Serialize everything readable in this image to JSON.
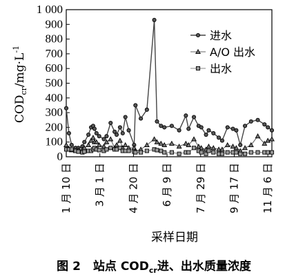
{
  "chart_data": {
    "type": "line",
    "xlabel": "采样日期",
    "ylabel": "COD",
    "ylabel_sub": "cr",
    "ylabel_unit": "/mg·L",
    "ylabel_sup": "-1",
    "ylim": [
      0,
      1000
    ],
    "yticks": [
      0,
      100,
      200,
      300,
      400,
      500,
      600,
      700,
      800,
      900,
      1000
    ],
    "ytick_labels": [
      "0",
      "100",
      "200",
      "300",
      "400",
      "500",
      "600",
      "700",
      "800",
      "900",
      "1 000"
    ],
    "xtick_labels": [
      "1 月 10 日",
      "3 月 1 日",
      "4 月 20 日",
      "6 月 9 日",
      "7 月 29 日",
      "9 月 17 日",
      "11 月 6 日"
    ],
    "xtick_positions": [
      0,
      50,
      100,
      150,
      200,
      250,
      300
    ],
    "x": [
      0,
      4,
      8,
      14,
      18,
      24,
      27,
      33,
      37,
      40,
      42,
      45,
      49,
      56,
      60,
      66,
      72,
      75,
      80,
      84,
      88,
      93,
      101,
      103,
      111,
      120,
      131,
      135,
      141,
      146,
      157,
      168,
      178,
      182,
      190,
      197,
      201,
      208,
      212,
      219,
      227,
      232,
      240,
      248,
      253,
      259,
      266,
      275,
      285,
      295,
      300,
      306
    ],
    "series": [
      {
        "name": "进水",
        "marker": "circle",
        "values": [
          330,
          160,
          80,
          60,
          60,
          70,
          100,
          150,
          200,
          210,
          190,
          160,
          140,
          120,
          140,
          230,
          170,
          150,
          200,
          160,
          270,
          180,
          80,
          350,
          260,
          320,
          930,
          240,
          210,
          200,
          210,
          180,
          280,
          190,
          270,
          210,
          200,
          150,
          180,
          160,
          130,
          110,
          200,
          190,
          180,
          80,
          210,
          240,
          250,
          220,
          200,
          180
        ]
      },
      {
        "name": "A/O 出水",
        "marker": "triangle",
        "values": [
          80,
          55,
          45,
          40,
          45,
          50,
          60,
          80,
          110,
          130,
          100,
          100,
          80,
          70,
          100,
          120,
          60,
          80,
          110,
          60,
          80,
          60,
          60,
          40,
          50,
          80,
          120,
          100,
          90,
          80,
          90,
          70,
          90,
          80,
          120,
          70,
          60,
          50,
          70,
          60,
          50,
          50,
          80,
          70,
          60,
          40,
          60,
          80,
          140,
          90,
          110,
          120
        ]
      },
      {
        "name": "出水",
        "marker": "square",
        "values": [
          50,
          50,
          50,
          40,
          35,
          30,
          35,
          40,
          40,
          50,
          60,
          50,
          45,
          40,
          50,
          60,
          50,
          50,
          60,
          40,
          40,
          40,
          35,
          30,
          30,
          40,
          50,
          45,
          40,
          30,
          30,
          20,
          30,
          30,
          60,
          40,
          30,
          20,
          40,
          30,
          20,
          20,
          30,
          30,
          30,
          20,
          20,
          30,
          30,
          30,
          30,
          30
        ]
      }
    ],
    "legend_position": "top-right",
    "grid": false
  },
  "caption": {
    "figure_label": "图 2",
    "prefix": "站点 COD",
    "sub": "cr",
    "suffix": "进、出水质量浓度"
  }
}
